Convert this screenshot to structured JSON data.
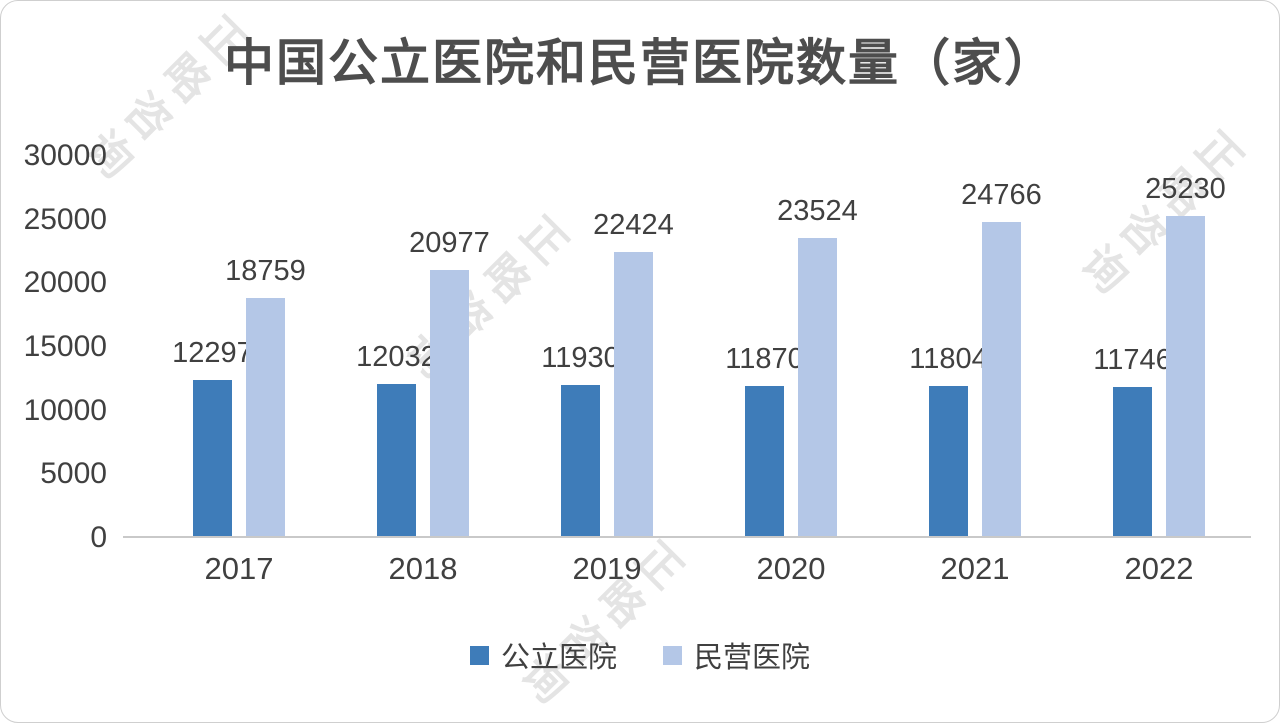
{
  "watermark": {
    "text": "正略咨询",
    "color": "#c7c7c7"
  },
  "chart_data": {
    "type": "bar",
    "title": "中国公立医院和民营医院数量（家）",
    "categories": [
      "2017",
      "2018",
      "2019",
      "2020",
      "2021",
      "2022"
    ],
    "series": [
      {
        "name": "公立医院",
        "color": "#3E7CB9",
        "values": [
          12297,
          12032,
          11930,
          11870,
          11804,
          11746
        ]
      },
      {
        "name": "民营医院",
        "color": "#B4C7E7",
        "values": [
          18759,
          20977,
          22424,
          23524,
          24766,
          25230
        ]
      }
    ],
    "ylim": [
      0,
      30000
    ],
    "yticks": [
      0,
      5000,
      10000,
      15000,
      20000,
      25000,
      30000
    ],
    "grid": false,
    "legend_position": "bottom",
    "data_labels": true,
    "axis_line_color": "#c9c9c9"
  }
}
